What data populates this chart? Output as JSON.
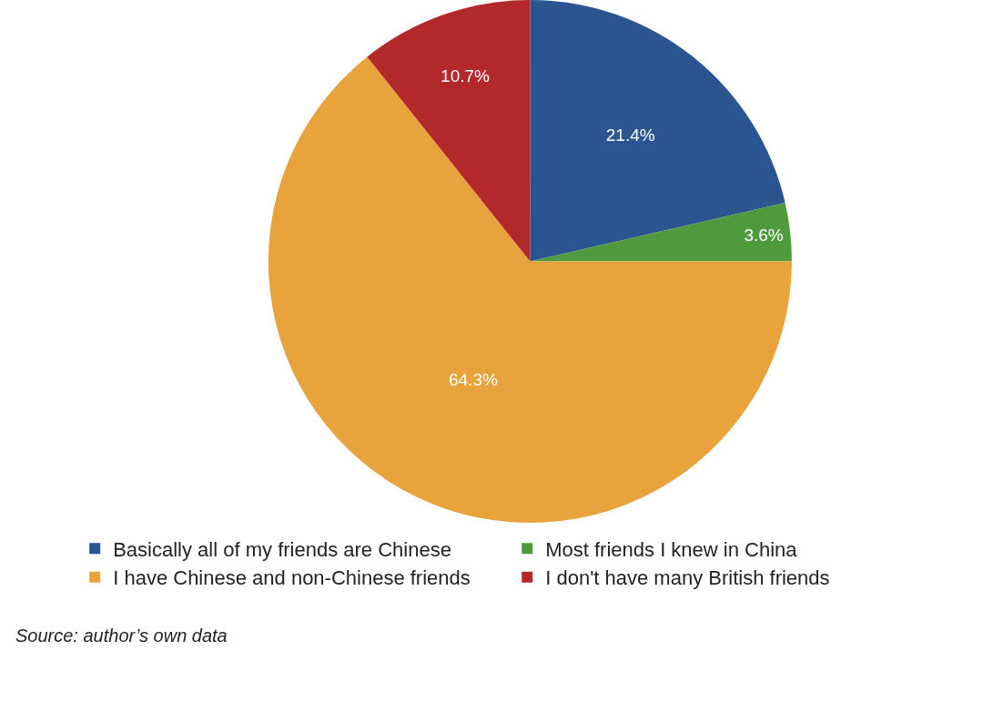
{
  "chart_data": {
    "type": "pie",
    "categories": [
      "Basically all of my friends are Chinese",
      "Most friends I knew in China",
      "I have Chinese and non-Chinese friends",
      "I don't have many British friends"
    ],
    "values": [
      21.4,
      3.6,
      64.3,
      10.7
    ],
    "colors": [
      "#2b5591",
      "#4f9a3d",
      "#e9a33c",
      "#b3282b"
    ],
    "value_labels": [
      "21.4%",
      "3.6%",
      "64.3%",
      "10.7%"
    ],
    "legend": "bottom",
    "annotations": [
      "Source: author’s own data"
    ]
  }
}
